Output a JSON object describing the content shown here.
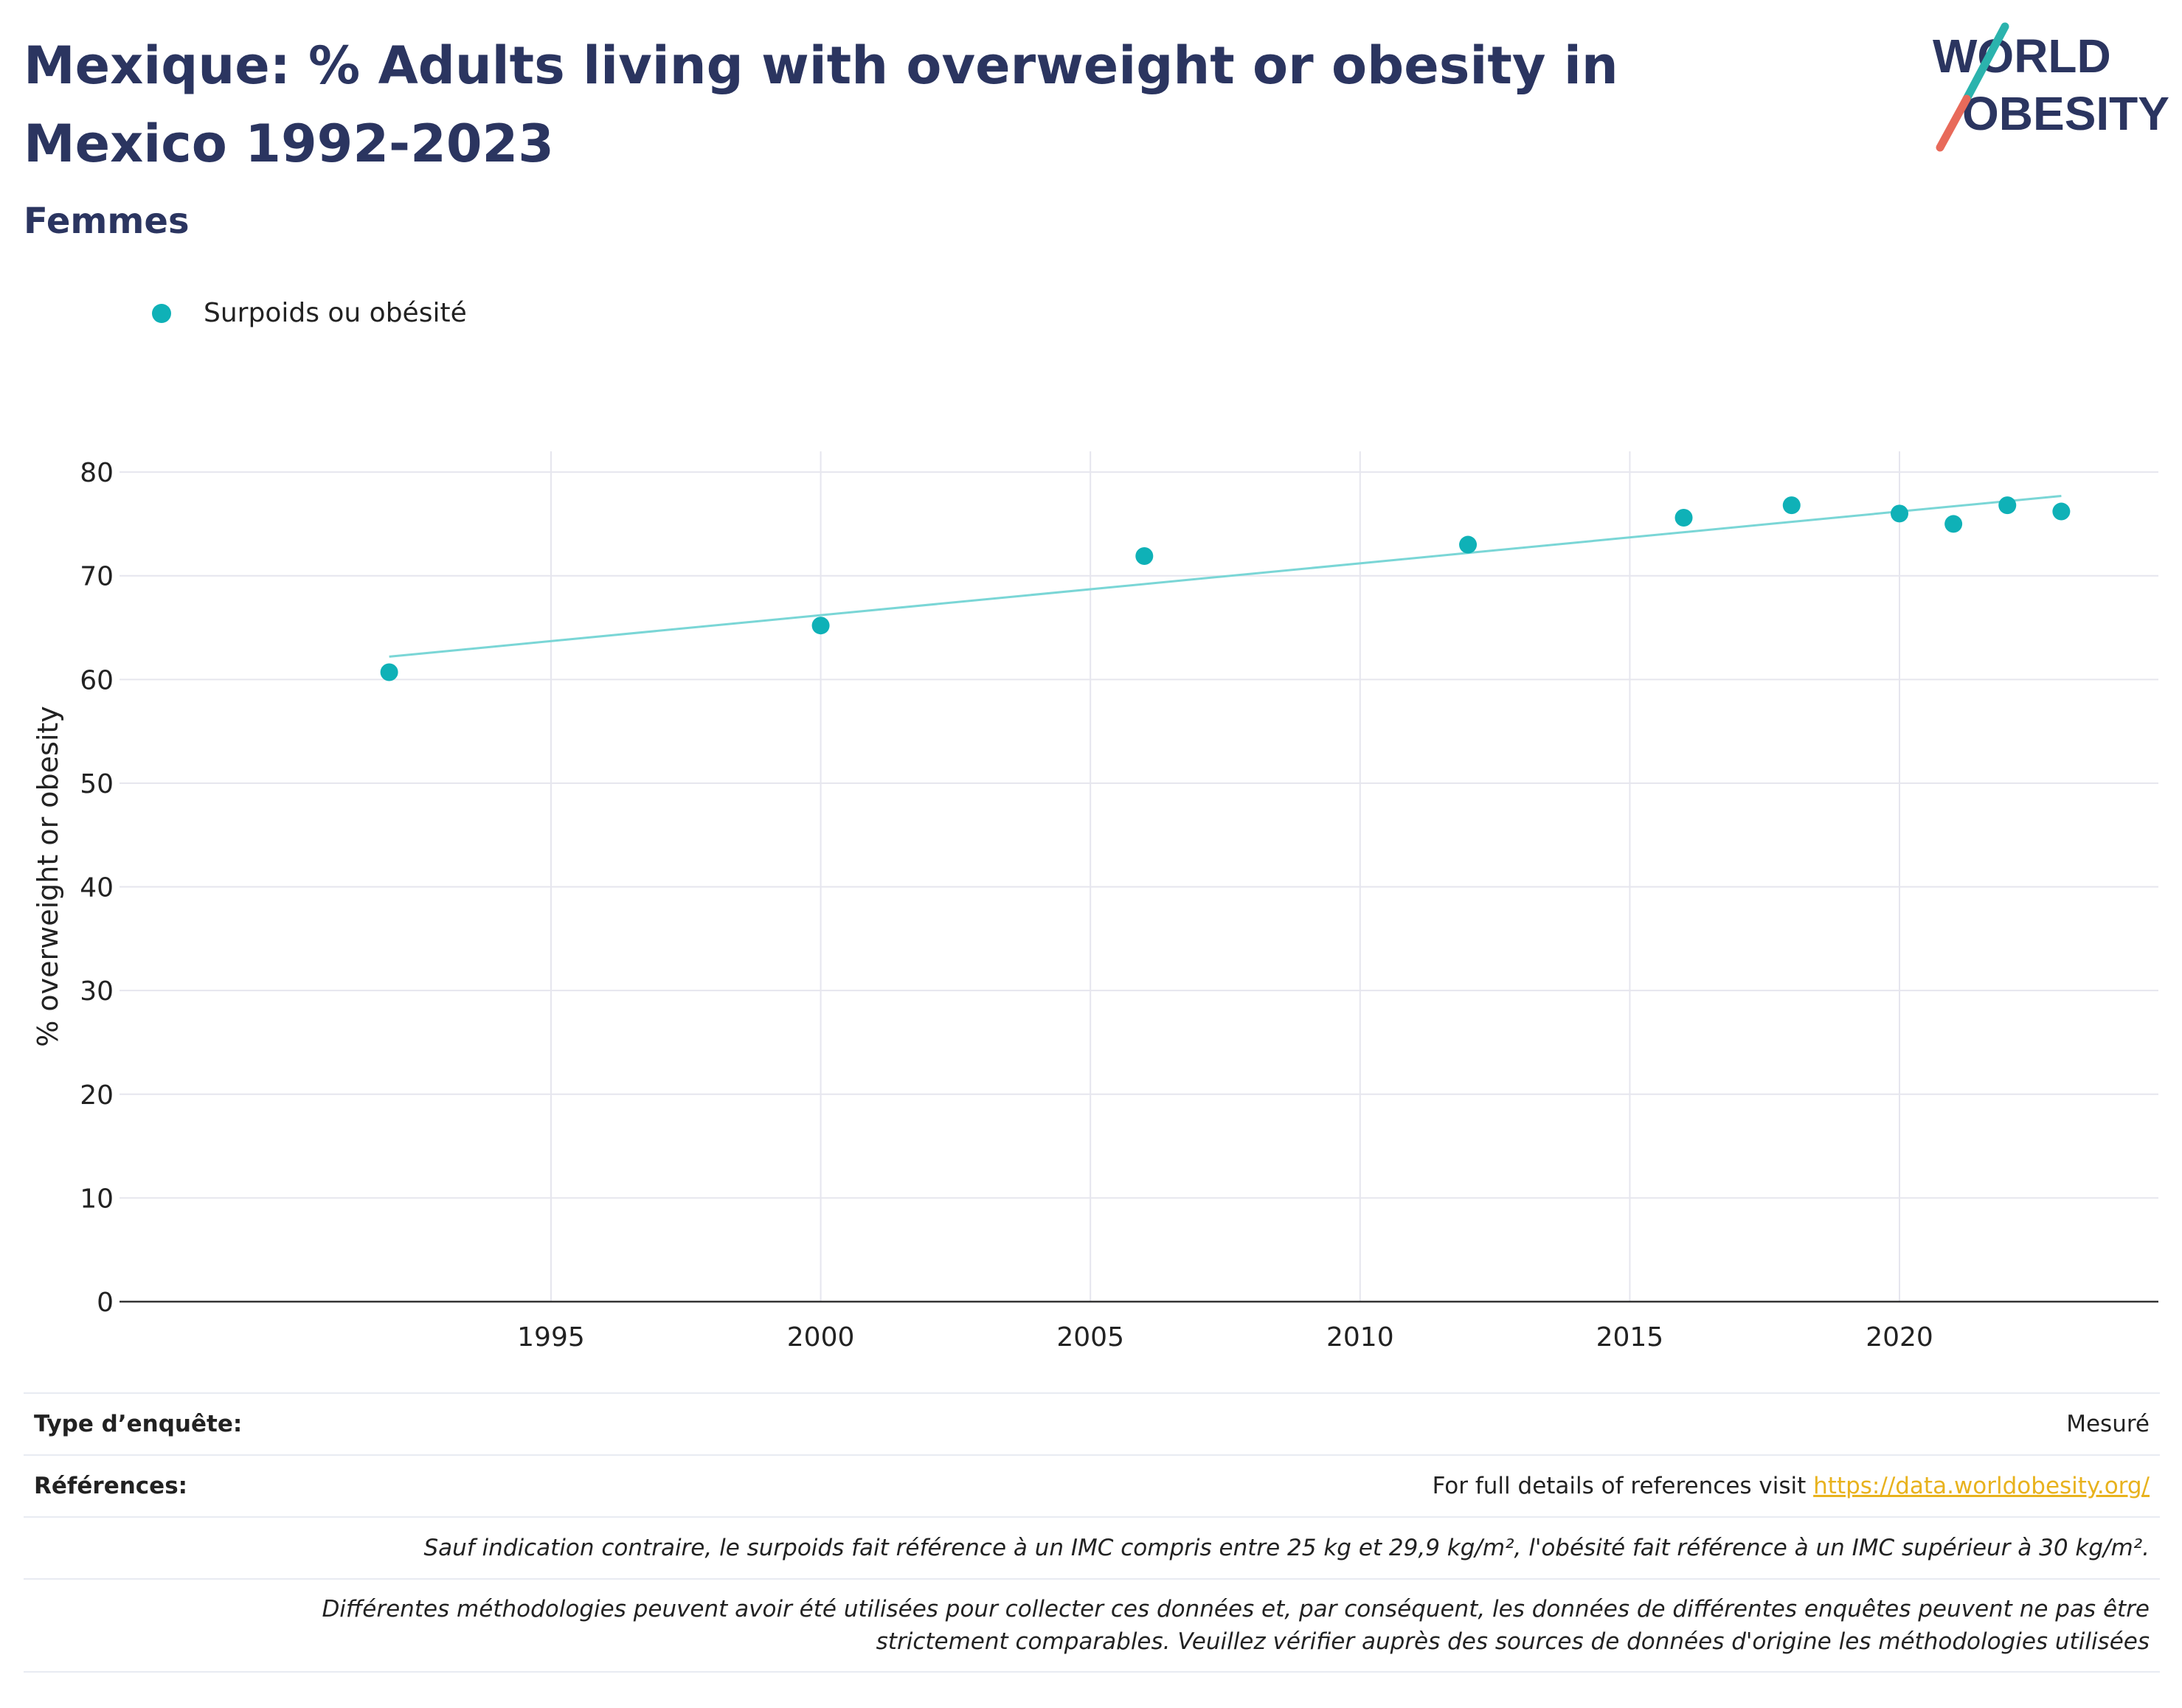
{
  "header": {
    "title": "Mexique: % Adults living with overweight or obesity in Mexico 1992-2023",
    "subtitle": "Femmes"
  },
  "logo": {
    "line1": "WORLD",
    "line2": "OBESITY",
    "accent_teal": "#2bb3ad",
    "accent_coral": "#e86a5a"
  },
  "colors": {
    "title": "#2b3560",
    "series": "#0fb1b7",
    "trend": "#7ad6d6",
    "grid": "#e6e6ee",
    "link": "#e8b21d"
  },
  "chart_data": {
    "type": "scatter",
    "title": "",
    "xlabel": "",
    "ylabel": "% overweight or obesity",
    "xlim": [
      1987,
      2024.8
    ],
    "ylim": [
      0,
      82
    ],
    "x_ticks": [
      1995,
      2000,
      2005,
      2010,
      2015,
      2020
    ],
    "y_ticks": [
      0,
      10,
      20,
      30,
      40,
      50,
      60,
      70,
      80
    ],
    "grid": true,
    "legend_position": "top-left",
    "series": [
      {
        "name": "Surpoids ou obésité",
        "points": [
          {
            "x": 1992,
            "y": 60.7
          },
          {
            "x": 2000,
            "y": 65.2
          },
          {
            "x": 2006,
            "y": 71.9
          },
          {
            "x": 2012,
            "y": 73.0
          },
          {
            "x": 2016,
            "y": 75.6
          },
          {
            "x": 2018,
            "y": 76.8
          },
          {
            "x": 2020,
            "y": 76.0
          },
          {
            "x": 2021,
            "y": 75.0
          },
          {
            "x": 2022,
            "y": 76.8
          },
          {
            "x": 2023,
            "y": 76.2
          }
        ]
      }
    ],
    "trendline": {
      "x": [
        1992,
        2023
      ],
      "y": [
        62.2,
        77.7
      ]
    }
  },
  "footer": {
    "survey_type_label": "Type d’enquête:",
    "survey_type_value": "Mesuré",
    "references_label": "Références:",
    "references_text": "For full details of references visit ",
    "references_link": "https://data.worldobesity.org/",
    "note_bmi": "Sauf indication contraire, le surpoids fait référence à un IMC compris entre 25 kg et 29,9 kg/m², l'obésité fait référence à un IMC supérieur à 30 kg/m².",
    "note_method": "Différentes méthodologies peuvent avoir été utilisées pour collecter ces données et, par conséquent, les données de différentes enquêtes peuvent ne pas être strictement comparables. Veuillez vérifier auprès des sources de données d'origine les méthodologies utilisées"
  }
}
